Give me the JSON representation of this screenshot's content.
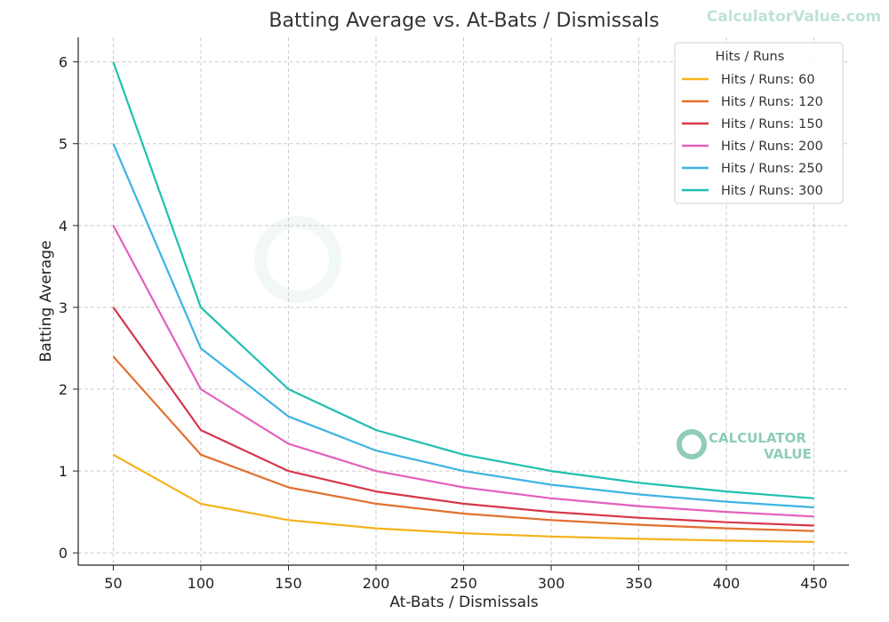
{
  "watermark_text": "CalculatorValue.com",
  "logo": {
    "line1": "CALCULATOR",
    "line2": "VALUE",
    "color": "#8fcdb4"
  },
  "chart_data": {
    "type": "line",
    "title": "Batting Average vs. At-Bats / Dismissals",
    "xlabel": "At-Bats / Dismissals",
    "ylabel": "Batting Average",
    "x": [
      50,
      100,
      150,
      200,
      250,
      300,
      350,
      400,
      450
    ],
    "xticks": [
      50,
      100,
      150,
      200,
      250,
      300,
      350,
      400,
      450
    ],
    "yticks": [
      0,
      1,
      2,
      3,
      4,
      5,
      6
    ],
    "xlim": [
      30,
      470
    ],
    "ylim": [
      -0.15,
      6.3
    ],
    "grid": true,
    "legend": {
      "title": "Hits / Runs",
      "position": "top-right"
    },
    "series": [
      {
        "name": "Hits / Runs: 60",
        "color": "#f5b21b",
        "values": [
          1.2,
          0.6,
          0.4,
          0.3,
          0.24,
          0.2,
          0.171,
          0.15,
          0.133
        ]
      },
      {
        "name": "Hits / Runs: 120",
        "color": "#e2702d",
        "values": [
          2.4,
          1.2,
          0.8,
          0.6,
          0.48,
          0.4,
          0.343,
          0.3,
          0.267
        ]
      },
      {
        "name": "Hits / Runs: 150",
        "color": "#d7374a",
        "values": [
          3.0,
          1.5,
          1.0,
          0.75,
          0.6,
          0.5,
          0.429,
          0.375,
          0.333
        ]
      },
      {
        "name": "Hits / Runs: 200",
        "color": "#e460bd",
        "values": [
          4.0,
          2.0,
          1.333,
          1.0,
          0.8,
          0.667,
          0.571,
          0.5,
          0.444
        ]
      },
      {
        "name": "Hits / Runs: 250",
        "color": "#3db4e3",
        "values": [
          5.0,
          2.5,
          1.667,
          1.25,
          1.0,
          0.833,
          0.714,
          0.625,
          0.556
        ]
      },
      {
        "name": "Hits / Runs: 300",
        "color": "#1fbfb0",
        "values": [
          6.0,
          3.0,
          2.0,
          1.5,
          1.2,
          1.0,
          0.857,
          0.75,
          0.667
        ]
      }
    ]
  }
}
